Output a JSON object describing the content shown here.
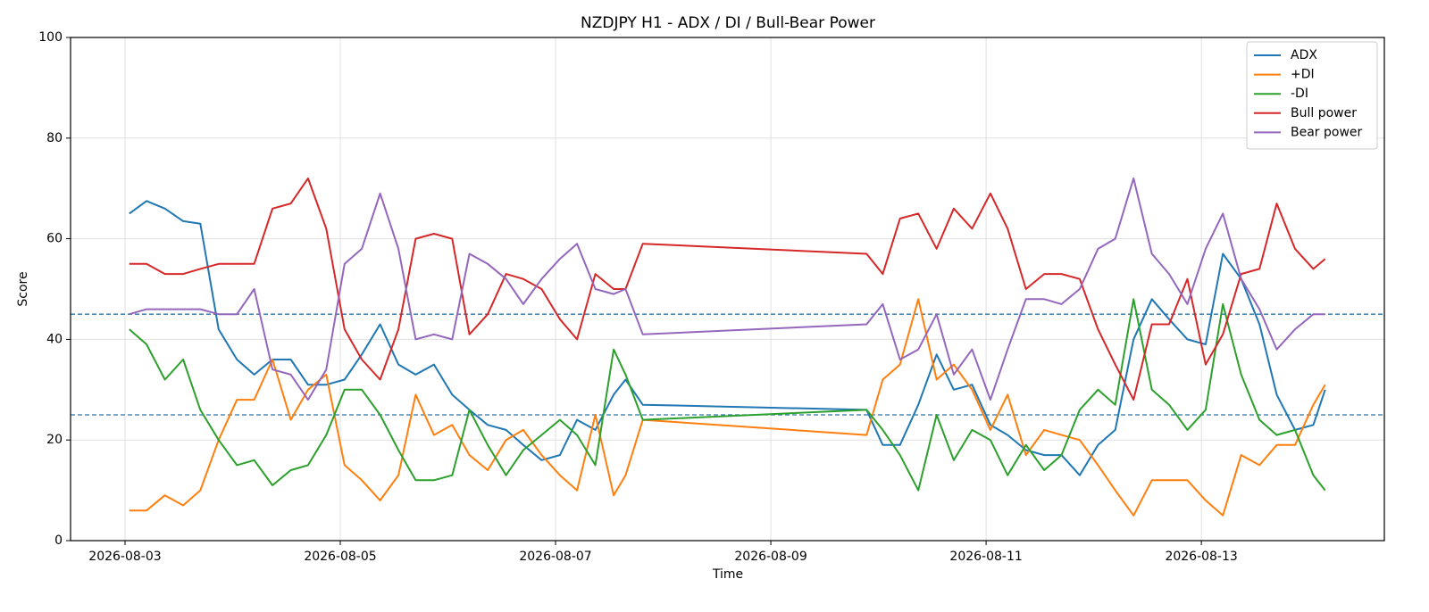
{
  "chart_data": {
    "type": "line",
    "title": "NZDJPY H1 - ADX / DI / Bull-Bear Power",
    "x_label": "Time",
    "y_label": "Score",
    "xlim": [
      -0.506,
      11.7
    ],
    "ylim": [
      0,
      100
    ],
    "xticks": [
      {
        "value": 0,
        "label": "2026-08-03"
      },
      {
        "value": 2,
        "label": "2026-08-05"
      },
      {
        "value": 4,
        "label": "2026-08-07"
      },
      {
        "value": 6,
        "label": "2026-08-09"
      },
      {
        "value": 8,
        "label": "2026-08-11"
      },
      {
        "value": 10,
        "label": "2026-08-13"
      }
    ],
    "yticks": [
      0,
      20,
      40,
      60,
      80,
      100
    ],
    "grid": true,
    "legend": "upper right",
    "hlines": [
      45,
      25
    ],
    "hline_color": "#1f77b4",
    "x": [
      0.04,
      0.2,
      0.37,
      0.54,
      0.7,
      0.87,
      1.04,
      1.2,
      1.37,
      1.54,
      1.7,
      1.87,
      2.04,
      2.2,
      2.37,
      2.54,
      2.7,
      2.87,
      3.04,
      3.2,
      3.37,
      3.54,
      3.7,
      3.87,
      4.04,
      4.2,
      4.37,
      4.54,
      4.65,
      4.81,
      6.89,
      7.04,
      7.2,
      7.37,
      7.54,
      7.7,
      7.87,
      8.04,
      8.2,
      8.37,
      8.54,
      8.7,
      8.87,
      9.04,
      9.2,
      9.37,
      9.54,
      9.7,
      9.87,
      10.04,
      10.2,
      10.37,
      10.54,
      10.7,
      10.87,
      11.04,
      11.15
    ],
    "series": [
      {
        "name": "ADX",
        "color": "#1f77b4",
        "values": [
          65,
          67.5,
          66,
          63.5,
          63,
          42,
          36,
          33,
          36,
          36,
          31,
          31,
          32,
          37,
          43,
          35,
          33,
          35,
          29,
          26,
          23,
          22,
          19,
          16,
          17,
          24,
          22,
          29,
          32,
          27,
          26,
          19,
          19,
          27,
          37,
          30,
          31,
          23,
          21,
          18,
          17,
          17,
          13,
          19,
          22,
          40,
          48,
          44,
          40,
          39,
          57,
          52,
          43,
          29,
          22,
          23,
          30
        ]
      },
      {
        "name": "+DI",
        "color": "#ff7f0e",
        "values": [
          6,
          6,
          9,
          7,
          10,
          20,
          28,
          28,
          36,
          24,
          30,
          33,
          15,
          12,
          8,
          13,
          29,
          21,
          23,
          17,
          14,
          20,
          22,
          17,
          13,
          10,
          25,
          9,
          13,
          24,
          21,
          32,
          35,
          48,
          32,
          35,
          30,
          22,
          29,
          17,
          22,
          21,
          20,
          15,
          10,
          5,
          12,
          12,
          12,
          8,
          5,
          17,
          15,
          19,
          19,
          27,
          31
        ]
      },
      {
        "name": "-DI",
        "color": "#2ca02c",
        "values": [
          42,
          39,
          32,
          36,
          26,
          20,
          15,
          16,
          11,
          14,
          15,
          21,
          30,
          30,
          25,
          18,
          12,
          12,
          13,
          26,
          19,
          13,
          18,
          21,
          24,
          21,
          15,
          38,
          33,
          24,
          26,
          22,
          17,
          10,
          25,
          16,
          22,
          20,
          13,
          19,
          14,
          17,
          26,
          30,
          27,
          48,
          30,
          27,
          22,
          26,
          47,
          33,
          24,
          21,
          22,
          13,
          10
        ]
      },
      {
        "name": "Bull power",
        "color": "#d62728",
        "values": [
          55,
          55,
          53,
          53,
          54,
          55,
          55,
          55,
          66,
          67,
          72,
          62,
          42,
          36,
          32,
          42,
          60,
          61,
          60,
          41,
          45,
          53,
          52,
          50,
          44,
          40,
          53,
          50,
          50,
          59,
          57,
          53,
          64,
          65,
          58,
          66,
          62,
          69,
          62,
          50,
          53,
          53,
          52,
          42,
          35,
          28,
          43,
          43,
          52,
          35,
          41,
          53,
          54,
          67,
          58,
          54,
          56
        ]
      },
      {
        "name": "Bear power",
        "color": "#9467bd",
        "values": [
          45,
          46,
          46,
          46,
          46,
          45,
          45,
          50,
          34,
          33,
          28,
          34,
          55,
          58,
          69,
          58,
          40,
          41,
          40,
          57,
          55,
          52,
          47,
          52,
          56,
          59,
          50,
          49,
          50,
          41,
          43,
          47,
          36,
          38,
          45,
          33,
          38,
          28,
          38,
          48,
          48,
          47,
          50,
          58,
          60,
          72,
          57,
          53,
          47,
          58,
          65,
          52,
          46,
          38,
          42,
          45,
          45
        ]
      }
    ]
  }
}
